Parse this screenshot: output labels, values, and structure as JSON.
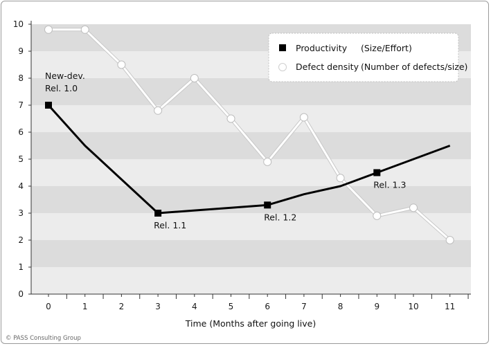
{
  "chart_data": {
    "type": "line",
    "xlabel": "Time (Months after going live)",
    "x": [
      0,
      1,
      2,
      3,
      4,
      5,
      6,
      7,
      8,
      9,
      10,
      11
    ],
    "xlim": [
      0,
      11
    ],
    "ylim": [
      0,
      10
    ],
    "yticks": [
      0,
      1,
      2,
      3,
      4,
      5,
      6,
      7,
      8,
      9,
      10
    ],
    "grid": "alternating horizontal bands",
    "legend_placement": "top-right",
    "series": [
      {
        "name": "Productivity",
        "unit": "(Size/Effort)",
        "marker": "square",
        "color": "#000000",
        "points": [
          [
            0,
            7.0
          ],
          [
            1,
            5.5
          ],
          [
            2,
            4.25
          ],
          [
            3,
            3.0
          ],
          [
            4,
            3.1
          ],
          [
            5,
            3.2
          ],
          [
            6,
            3.3
          ],
          [
            7,
            3.7
          ],
          [
            8,
            4.0
          ],
          [
            9,
            4.5
          ],
          [
            10,
            5.0
          ],
          [
            11,
            5.5
          ]
        ],
        "marked_x": [
          0,
          3,
          6,
          9
        ]
      },
      {
        "name": "Defect density",
        "unit": "(Number of defects/size)",
        "marker": "circle",
        "color": "#ffffff",
        "points": [
          [
            0,
            9.8
          ],
          [
            1,
            9.8
          ],
          [
            2,
            8.5
          ],
          [
            3,
            6.8
          ],
          [
            4,
            8.0
          ],
          [
            5,
            6.5
          ],
          [
            6,
            4.9
          ],
          [
            7,
            6.55
          ],
          [
            8,
            4.3
          ],
          [
            9,
            2.9
          ],
          [
            10,
            3.2
          ],
          [
            11,
            2.0
          ]
        ],
        "marked_x": [
          0,
          1,
          2,
          3,
          4,
          5,
          6,
          7,
          8,
          9,
          10,
          11
        ]
      }
    ],
    "annotations": [
      {
        "lines": [
          "New-dev.",
          "Rel. 1.0"
        ],
        "x": 0,
        "y": 7.0,
        "pos": "above"
      },
      {
        "lines": [
          "Rel. 1.1"
        ],
        "x": 3,
        "y": 3.0,
        "pos": "below"
      },
      {
        "lines": [
          "Rel. 1.2"
        ],
        "x": 6,
        "y": 3.3,
        "pos": "below"
      },
      {
        "lines": [
          "Rel. 1.3"
        ],
        "x": 9,
        "y": 4.5,
        "pos": "below"
      }
    ]
  },
  "credit": "© PASS Consulting Group"
}
